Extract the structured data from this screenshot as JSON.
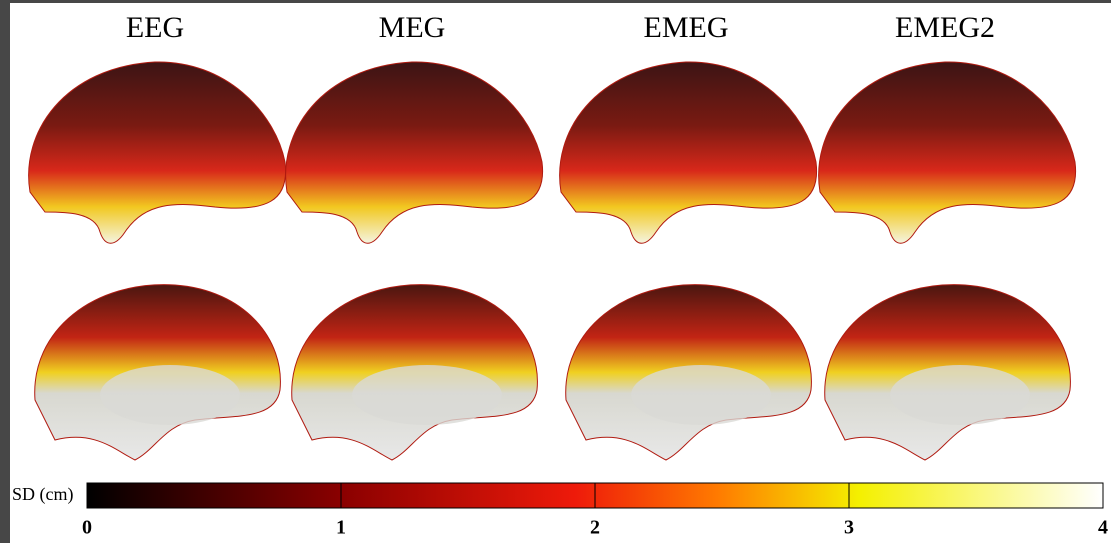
{
  "columns": [
    "EEG",
    "MEG",
    "EMEG",
    "EMEG2"
  ],
  "colorbar": {
    "label": "SD (cm)",
    "lim": [
      0,
      4
    ],
    "ticks": [
      0,
      1,
      2,
      3,
      4
    ]
  }
}
